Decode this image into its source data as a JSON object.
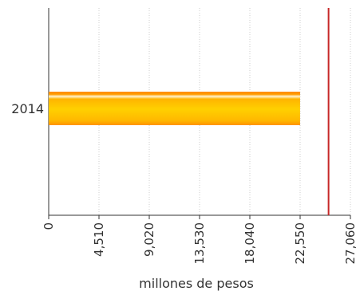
{
  "chart_data": {
    "type": "bar",
    "orientation": "horizontal",
    "title": "",
    "categories": [
      "2014"
    ],
    "series": [
      {
        "values": [
          22550
        ]
      }
    ],
    "xlabel": "millones de pesos",
    "ylabel": "",
    "xlim": [
      0,
      27060
    ],
    "xticks": [
      0,
      4510,
      9020,
      13530,
      18040,
      22550,
      27060
    ],
    "xtick_labels": [
      "0",
      "4,510",
      "9,020",
      "13,530",
      "18,040",
      "22,550",
      "27,060"
    ],
    "reference_line": {
      "value": 25100,
      "color": "#c62828"
    },
    "grid": "vertical dotted",
    "legend": "none",
    "colors": {
      "bar_top": "#ff8a00",
      "bar_mid": "#ffd000",
      "bar_bottom": "#ff9a00",
      "bar_edge": "#ffffff",
      "axis": "#333333",
      "grid": "#cccccc",
      "reference_line": "#c62828"
    }
  }
}
